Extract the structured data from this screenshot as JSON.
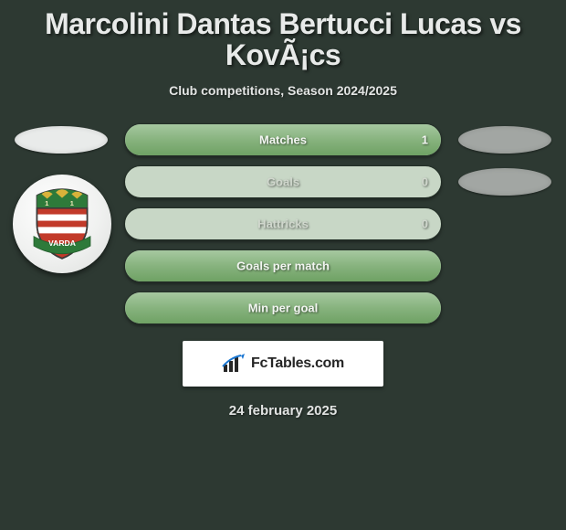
{
  "title": "Marcolini Dantas Bertucci Lucas vs KovÃ¡cs",
  "subtitle": "Club competitions, Season 2024/2025",
  "bars": [
    {
      "label": "Matches",
      "value": "1",
      "fill_pct": 100,
      "has_left_ellipse": true,
      "has_right_ellipse": true,
      "full": true
    },
    {
      "label": "Goals",
      "value": "0",
      "fill_pct": 0,
      "has_left_ellipse": false,
      "has_right_ellipse": true,
      "full": false
    },
    {
      "label": "Hattricks",
      "value": "0",
      "fill_pct": 0,
      "has_left_ellipse": false,
      "has_right_ellipse": false,
      "full": false
    },
    {
      "label": "Goals per match",
      "value": "",
      "fill_pct": 100,
      "has_left_ellipse": false,
      "has_right_ellipse": false,
      "full": true
    },
    {
      "label": "Min per goal",
      "value": "",
      "fill_pct": 100,
      "has_left_ellipse": false,
      "has_right_ellipse": false,
      "full": true
    }
  ],
  "colors": {
    "background": "#2d3932",
    "bar_track": "#c8d7c6",
    "bar_fill_top": "#a6c8a0",
    "bar_fill_bot": "#6fa264",
    "left_ellipse": "#e9ebea",
    "right_ellipse": "#a2a6a3",
    "title_text": "#e8eae9"
  },
  "crest": {
    "banner_text": "VARDA",
    "year": "1911",
    "shield_top": "#2e7a3a",
    "shield_red": "#c23a2a",
    "shield_white": "#ffffff"
  },
  "brand": {
    "text": "FcTables.com"
  },
  "date": "24 february 2025"
}
